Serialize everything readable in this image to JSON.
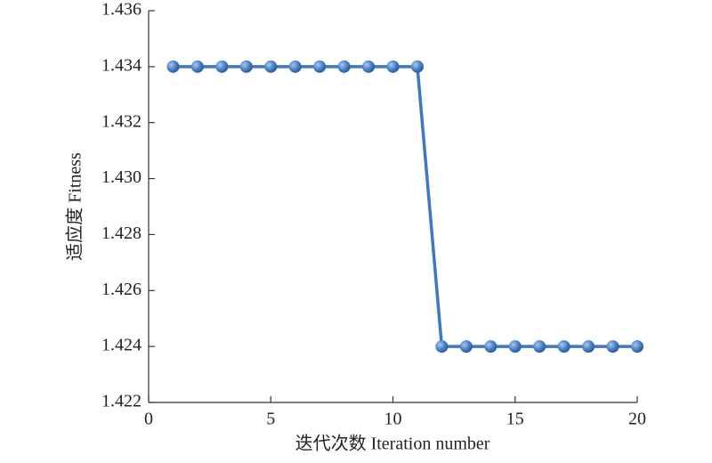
{
  "chart_data": {
    "type": "line",
    "x_label": "迭代次数 Iteration number",
    "y_label": "适应度 Fitness",
    "x": [
      1,
      2,
      3,
      4,
      5,
      6,
      7,
      8,
      9,
      10,
      11,
      12,
      13,
      14,
      15,
      16,
      17,
      18,
      19,
      20
    ],
    "series": [
      {
        "color": "#3d78c0",
        "values": [
          1.434,
          1.434,
          1.434,
          1.434,
          1.434,
          1.434,
          1.434,
          1.434,
          1.434,
          1.434,
          1.434,
          1.424,
          1.424,
          1.424,
          1.424,
          1.424,
          1.424,
          1.424,
          1.424,
          1.424
        ]
      }
    ],
    "xlim": [
      0,
      20
    ],
    "xticks": [
      0,
      5,
      10,
      15,
      20
    ],
    "ylim": [
      1.422,
      1.436
    ],
    "yticks": [
      1.422,
      1.424,
      1.426,
      1.428,
      {
        "value": 1.43,
        "label": "1.430"
      },
      1.432,
      1.434,
      1.436
    ]
  }
}
